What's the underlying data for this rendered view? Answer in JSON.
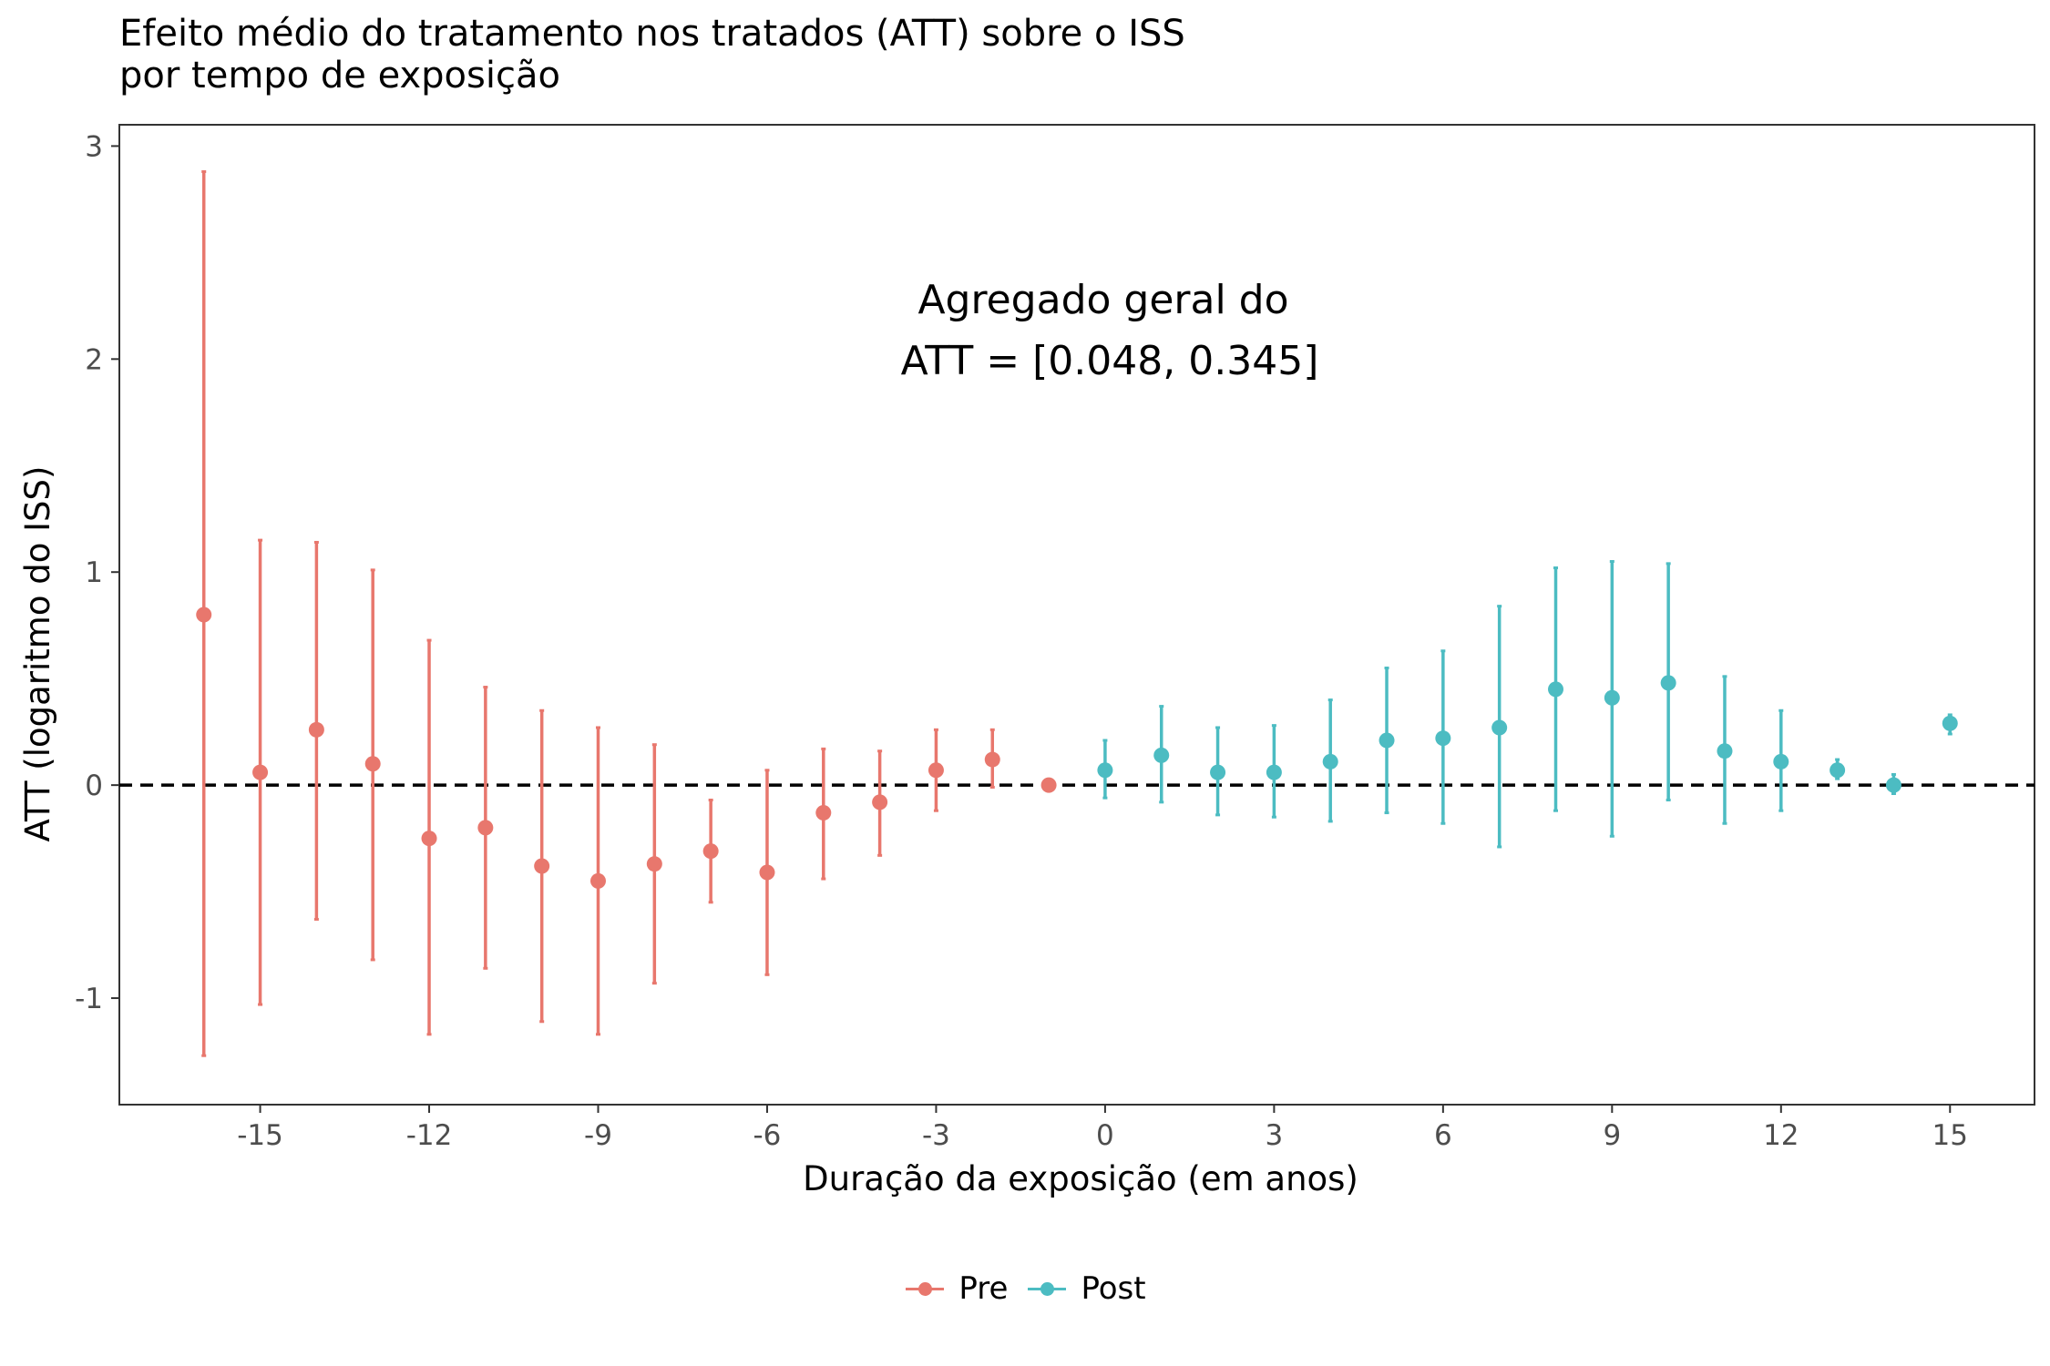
{
  "chart_data": {
    "type": "scatter",
    "title": [
      "Efeito médio do tratamento nos tratados (ATT) sobre o ISS",
      "por tempo de exposição"
    ],
    "xlabel": "Duração da exposição (em anos)",
    "ylabel": "ATT (logaritmo do ISS)",
    "xlim": [
      -17.5,
      16.5
    ],
    "ylim": [
      -1.5,
      3.1
    ],
    "xticks": [
      -15,
      -12,
      -9,
      -6,
      -3,
      0,
      3,
      6,
      9,
      12,
      15
    ],
    "yticks": [
      -1,
      0,
      1,
      2,
      3
    ],
    "grid": false,
    "reference_line": {
      "y": 0,
      "style": "dashed"
    },
    "annotation": [
      "Agregado geral do",
      "ATT =  [0.048, 0.345]"
    ],
    "legend": {
      "position": "bottom",
      "entries": [
        "Pre",
        "Post"
      ]
    },
    "series": [
      {
        "name": "Pre",
        "color": "#E8776D",
        "points": [
          {
            "x": -16,
            "y": 0.8,
            "lo": -1.27,
            "hi": 2.88
          },
          {
            "x": -15,
            "y": 0.06,
            "lo": -1.03,
            "hi": 1.15
          },
          {
            "x": -14,
            "y": 0.26,
            "lo": -0.63,
            "hi": 1.14
          },
          {
            "x": -13,
            "y": 0.1,
            "lo": -0.82,
            "hi": 1.01
          },
          {
            "x": -12,
            "y": -0.25,
            "lo": -1.17,
            "hi": 0.68
          },
          {
            "x": -11,
            "y": -0.2,
            "lo": -0.86,
            "hi": 0.46
          },
          {
            "x": -10,
            "y": -0.38,
            "lo": -1.11,
            "hi": 0.35
          },
          {
            "x": -9,
            "y": -0.45,
            "lo": -1.17,
            "hi": 0.27
          },
          {
            "x": -8,
            "y": -0.37,
            "lo": -0.93,
            "hi": 0.19
          },
          {
            "x": -7,
            "y": -0.31,
            "lo": -0.55,
            "hi": -0.07
          },
          {
            "x": -6,
            "y": -0.41,
            "lo": -0.89,
            "hi": 0.07
          },
          {
            "x": -5,
            "y": -0.13,
            "lo": -0.44,
            "hi": 0.17
          },
          {
            "x": -4,
            "y": -0.08,
            "lo": -0.33,
            "hi": 0.16
          },
          {
            "x": -3,
            "y": 0.07,
            "lo": -0.12,
            "hi": 0.26
          },
          {
            "x": -2,
            "y": 0.12,
            "lo": -0.01,
            "hi": 0.26
          },
          {
            "x": -1,
            "y": 0.0,
            "lo": 0.0,
            "hi": 0.0
          }
        ]
      },
      {
        "name": "Post",
        "color": "#4CBCC2",
        "points": [
          {
            "x": 0,
            "y": 0.07,
            "lo": -0.06,
            "hi": 0.21
          },
          {
            "x": 1,
            "y": 0.14,
            "lo": -0.08,
            "hi": 0.37
          },
          {
            "x": 2,
            "y": 0.06,
            "lo": -0.14,
            "hi": 0.27
          },
          {
            "x": 3,
            "y": 0.06,
            "lo": -0.15,
            "hi": 0.28
          },
          {
            "x": 4,
            "y": 0.11,
            "lo": -0.17,
            "hi": 0.4
          },
          {
            "x": 5,
            "y": 0.21,
            "lo": -0.13,
            "hi": 0.55
          },
          {
            "x": 6,
            "y": 0.22,
            "lo": -0.18,
            "hi": 0.63
          },
          {
            "x": 7,
            "y": 0.27,
            "lo": -0.29,
            "hi": 0.84
          },
          {
            "x": 8,
            "y": 0.45,
            "lo": -0.12,
            "hi": 1.02
          },
          {
            "x": 9,
            "y": 0.41,
            "lo": -0.24,
            "hi": 1.05
          },
          {
            "x": 10,
            "y": 0.48,
            "lo": -0.07,
            "hi": 1.04
          },
          {
            "x": 11,
            "y": 0.16,
            "lo": -0.18,
            "hi": 0.51
          },
          {
            "x": 12,
            "y": 0.11,
            "lo": -0.12,
            "hi": 0.35
          },
          {
            "x": 13,
            "y": 0.07,
            "lo": 0.03,
            "hi": 0.12
          },
          {
            "x": 14,
            "y": 0.0,
            "lo": -0.04,
            "hi": 0.05
          },
          {
            "x": 15,
            "y": 0.29,
            "lo": 0.24,
            "hi": 0.33
          }
        ]
      }
    ]
  }
}
